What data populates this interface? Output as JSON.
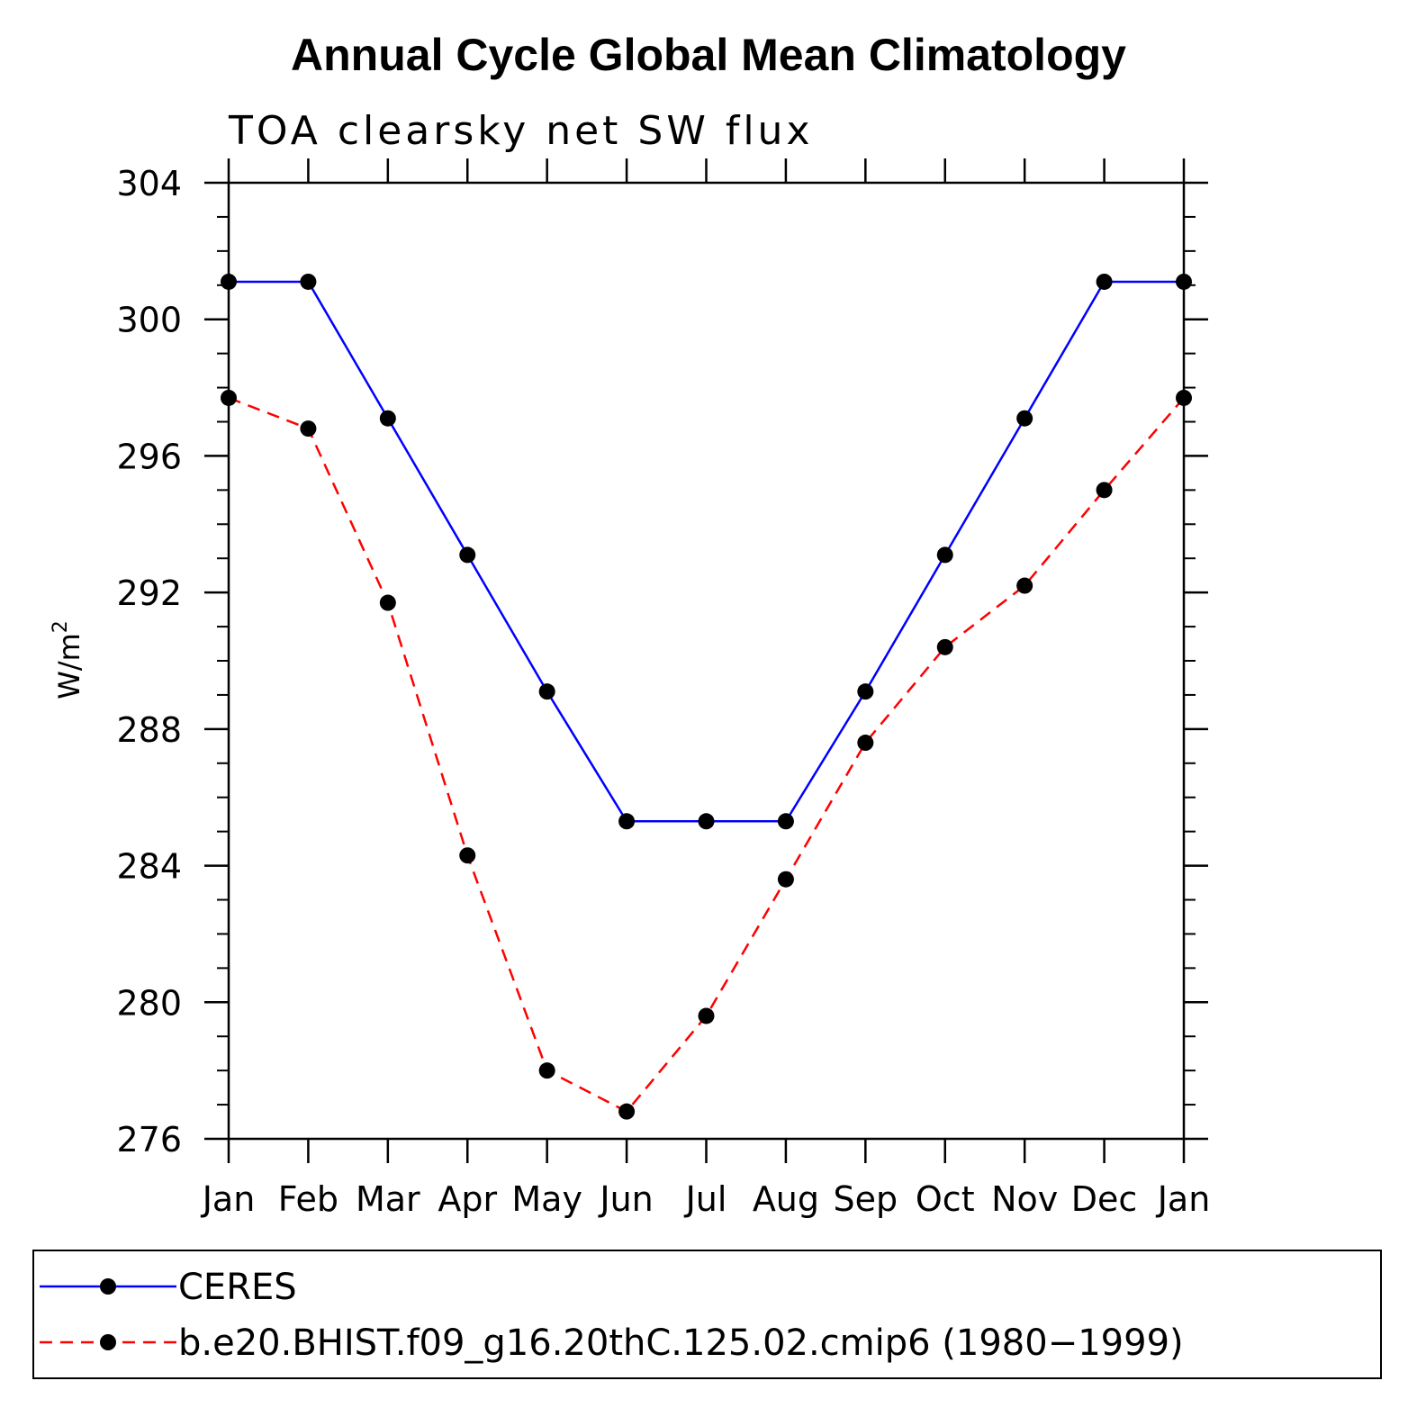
{
  "chart_data": {
    "type": "line",
    "title": "Annual Cycle Global Mean Climatology",
    "subtitle": "TOA clearsky net SW flux",
    "ylabel_base": "W/m",
    "ylabel_sup": "2",
    "categories": [
      "Jan",
      "Feb",
      "Mar",
      "Apr",
      "May",
      "Jun",
      "Jul",
      "Aug",
      "Sep",
      "Oct",
      "Nov",
      "Dec",
      "Jan"
    ],
    "ylim": [
      276,
      304
    ],
    "yticks": [
      276,
      280,
      284,
      288,
      292,
      296,
      300,
      304
    ],
    "series": [
      {
        "name": "CERES",
        "color": "#0000ff",
        "dash": "solid",
        "values": [
          301.1,
          301.1,
          297.1,
          293.1,
          289.1,
          285.3,
          285.3,
          285.3,
          289.1,
          293.1,
          297.1,
          301.1,
          301.1
        ]
      },
      {
        "name": "b.e20.BHIST.f09_g16.20thC.125.02.cmip6 (1980−1999)",
        "color": "#ff0000",
        "dash": "dashed",
        "values": [
          297.7,
          296.8,
          291.7,
          284.3,
          278.0,
          276.8,
          279.6,
          283.6,
          287.6,
          290.4,
          292.2,
          295.0,
          297.7
        ]
      }
    ],
    "grid": false,
    "legend_position": "bottom"
  }
}
